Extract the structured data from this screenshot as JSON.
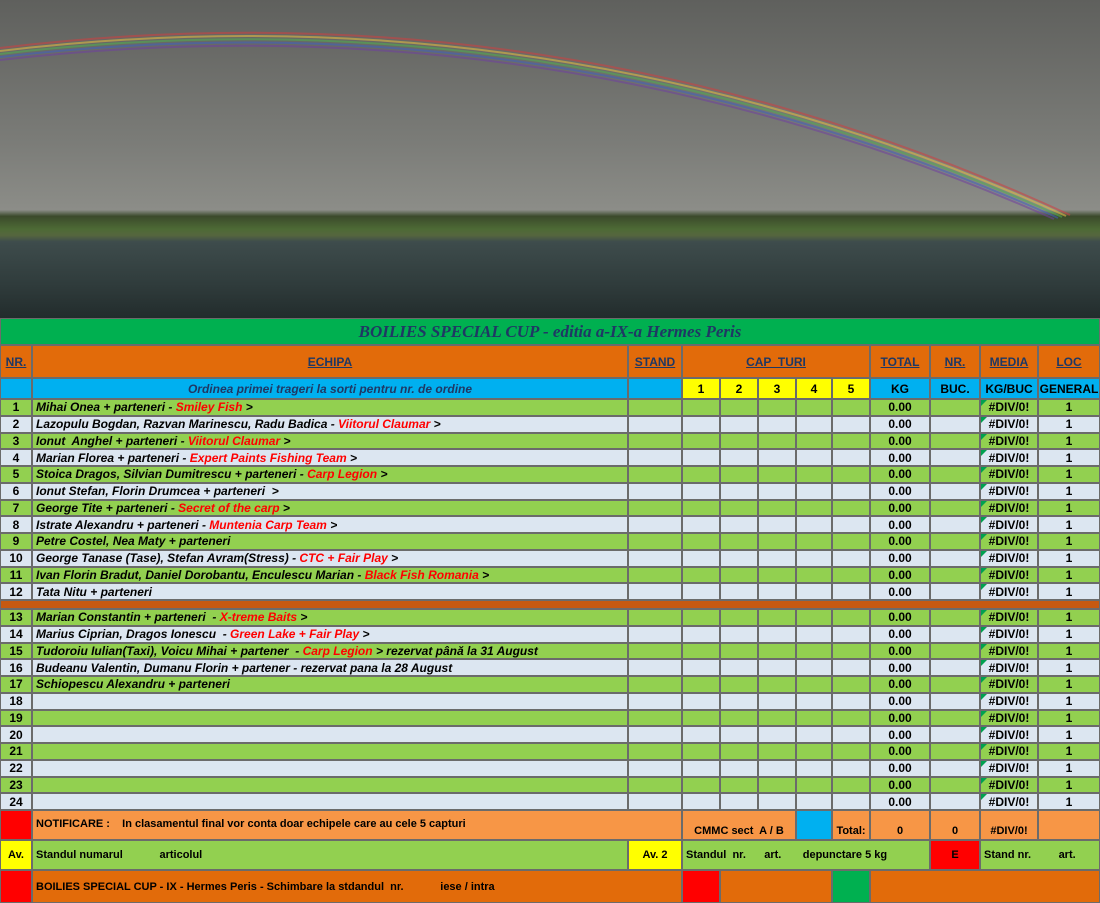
{
  "title": "BOILIES SPECIAL CUP - editia a-IX-a Hermes Peris",
  "header": {
    "nr": "NR.",
    "echipa": "ECHIPA",
    "stand": "STAND",
    "cap_turi": "CAP  TURI",
    "total": "TOTAL",
    "nr_buc": "NR.",
    "media": "MEDIA",
    "loc": "LOC"
  },
  "subheader": {
    "ordinea": "Ordinea primei trageri la sorti pentru nr. de ordine",
    "turi": [
      1,
      2,
      3,
      4,
      5
    ],
    "kg": "KG",
    "buc": "BUC.",
    "kg_buc": "KG/BUC",
    "general": "GENERAL"
  },
  "rows": [
    {
      "nr": 1,
      "team": "Mihai Onea + parteneri - ",
      "club": "Smiley Fish",
      "tail": " >",
      "total": "0.00",
      "media": "#DIV/0!",
      "loc": 1
    },
    {
      "nr": 2,
      "team": "Lazopulu Bogdan, Razvan Marinescu, Radu Badica - ",
      "club": "Viitorul Claumar",
      "tail": " >",
      "total": "0.00",
      "media": "#DIV/0!",
      "loc": 1
    },
    {
      "nr": 3,
      "team": "Ionut  Anghel + parteneri - ",
      "club": "Viitorul Claumar",
      "tail": " >",
      "total": "0.00",
      "media": "#DIV/0!",
      "loc": 1
    },
    {
      "nr": 4,
      "team": "Marian Florea + parteneri - ",
      "club": "Expert Paints Fishing Team",
      "tail": " >",
      "total": "0.00",
      "media": "#DIV/0!",
      "loc": 1
    },
    {
      "nr": 5,
      "team": "Stoica Dragos, Silvian Dumitrescu + parteneri - ",
      "club": "Carp Legion",
      "tail": " >",
      "total": "0.00",
      "media": "#DIV/0!",
      "loc": 1
    },
    {
      "nr": 6,
      "team": "Ionut Stefan, Florin Drumcea + parteneri  >",
      "total": "0.00",
      "media": "#DIV/0!",
      "loc": 1
    },
    {
      "nr": 7,
      "team": "George Tite + parteneri - ",
      "club": "Secret of the carp",
      "tail": " >",
      "total": "0.00",
      "media": "#DIV/0!",
      "loc": 1
    },
    {
      "nr": 8,
      "team": "Istrate Alexandru + parteneri - ",
      "club": "Muntenia Carp Team",
      "tail": " >",
      "total": "0.00",
      "media": "#DIV/0!",
      "loc": 1
    },
    {
      "nr": 9,
      "team": "Petre Costel, Nea Maty + parteneri",
      "total": "0.00",
      "media": "#DIV/0!",
      "loc": 1
    },
    {
      "nr": 10,
      "team": "George Tanase (Tase), Stefan Avram(Stress) - ",
      "club": "CTC + Fair Play",
      "tail": " >",
      "total": "0.00",
      "media": "#DIV/0!",
      "loc": 1
    },
    {
      "nr": 11,
      "team": "Ivan Florin Bradut, Daniel Dorobantu, Enculescu Marian - ",
      "club": "Black Fish Romania",
      "tail": " >",
      "total": "0.00",
      "media": "#DIV/0!",
      "loc": 1
    },
    {
      "nr": 12,
      "team": "Tata Nitu + parteneri",
      "total": "0.00",
      "media": "#DIV/0!",
      "loc": 1
    },
    {
      "nr": 13,
      "team": "Marian Constantin + parteneri  - ",
      "club": "X-treme Baits",
      "tail": " >",
      "total": "0.00",
      "media": "#DIV/0!",
      "loc": 1
    },
    {
      "nr": 14,
      "team": "Marius Ciprian, Dragos Ionescu  - ",
      "club": "Green Lake + Fair Play",
      "tail": " >",
      "total": "0.00",
      "media": "#DIV/0!",
      "loc": 1
    },
    {
      "nr": 15,
      "team": "Tudoroiu Iulian(Taxi), Voicu Mihai + partener  - ",
      "club": "Carp Legion",
      "tail": " > rezervat până la 31 August",
      "total": "0.00",
      "media": "#DIV/0!",
      "loc": 1
    },
    {
      "nr": 16,
      "team": "Budeanu Valentin, Dumanu Florin + partener - rezervat pana la 28 August",
      "total": "0.00",
      "media": "#DIV/0!",
      "loc": 1
    },
    {
      "nr": 17,
      "team": "Schiopescu Alexandru + parteneri",
      "total": "0.00",
      "media": "#DIV/0!",
      "loc": 1
    },
    {
      "nr": 18,
      "total": "0.00",
      "media": "#DIV/0!",
      "loc": 1
    },
    {
      "nr": 19,
      "total": "0.00",
      "media": "#DIV/0!",
      "loc": 1
    },
    {
      "nr": 20,
      "total": "0.00",
      "media": "#DIV/0!",
      "loc": 1
    },
    {
      "nr": 21,
      "total": "0.00",
      "media": "#DIV/0!",
      "loc": 1
    },
    {
      "nr": 22,
      "total": "0.00",
      "media": "#DIV/0!",
      "loc": 1
    },
    {
      "nr": 23,
      "total": "0.00",
      "media": "#DIV/0!",
      "loc": 1
    },
    {
      "nr": 24,
      "total": "0.00",
      "media": "#DIV/0!",
      "loc": 1
    }
  ],
  "footer": {
    "notificare": "NOTIFICARE :    In clasamentul final vor conta doar echipele care au cele 5 capturi",
    "cmmc": "CMMC sect  A / B",
    "total_label": "Total:",
    "total_kg": 0,
    "total_buc": 0,
    "total_media": "#DIV/0!",
    "av": "Av.",
    "standul_numarul": "Standul numarul            articolul",
    "av2": "Av. 2",
    "standul_art": "Standul  nr.      art.       depunctare 5 kg",
    "e": "E",
    "stand_nr": "Stand nr.         art.",
    "bottom": "BOILIES SPECIAL CUP - IX - Hermes Peris - Schimbare la stdandul  nr.            iese / intra"
  }
}
